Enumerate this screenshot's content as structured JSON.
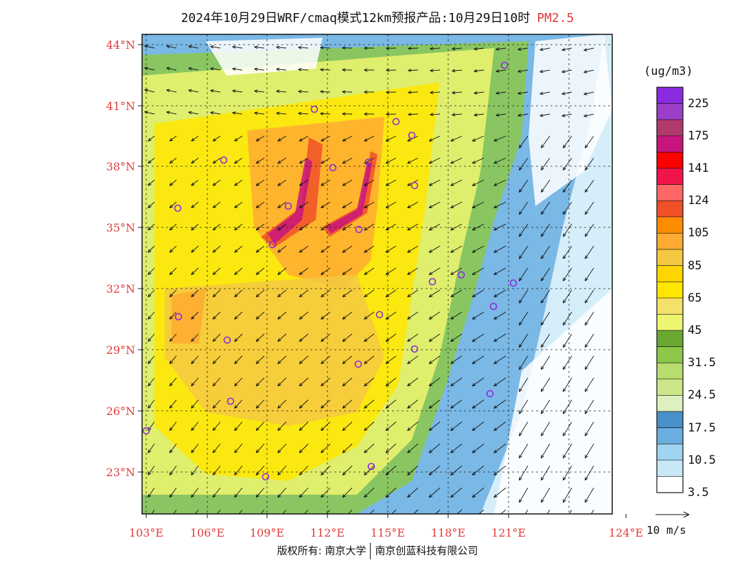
{
  "title": {
    "main": "2024年10月29日WRF/cmaq模式12km预报产品:10月29日10时",
    "pollutant": "PM2.5"
  },
  "map": {
    "lat_labels": [
      "44°N",
      "41°N",
      "38°N",
      "35°N",
      "32°N",
      "29°N",
      "26°N",
      "23°N"
    ],
    "lon_labels": [
      "103°E",
      "106°E",
      "109°E",
      "112°E",
      "115°E",
      "118°E",
      "121°E",
      "124°E"
    ],
    "label_color": "#e23b3b"
  },
  "colorbar": {
    "units": "(ug/m3)",
    "labels": [
      "225",
      "175",
      "141",
      "124",
      "105",
      "85",
      "65",
      "45",
      "31.5",
      "24.5",
      "17.5",
      "10.5",
      "3.5"
    ],
    "colors": [
      "#8a2be2",
      "#9b3fc8",
      "#b03a6e",
      "#c8147e",
      "#ff0000",
      "#f0144a",
      "#ff6666",
      "#f05028",
      "#ff8c00",
      "#ffaa33",
      "#f5c842",
      "#ffd500",
      "#ffe600",
      "#f5e06a",
      "#eef56e",
      "#6aa832",
      "#8cc84a",
      "#b8dc6e",
      "#cde68a",
      "#dff0c0",
      "#4a90c8",
      "#6aaee0",
      "#a0d4f0",
      "#c8e8f8",
      "#ffffff"
    ]
  },
  "vector_legend": {
    "label": "10 m/s"
  },
  "footer": {
    "left": "版权所有: 南京大学",
    "right": "南京创蓝科技有限公司"
  }
}
